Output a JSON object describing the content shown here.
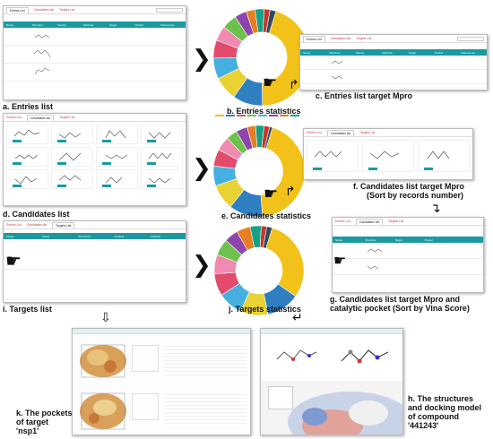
{
  "captions": {
    "a": "a. Entries list",
    "b": "b. Entries statistics",
    "c": "c. Entries list target Mpro",
    "d": "d. Candidates list",
    "e": "e. Candidates statistics",
    "f1": "f. Candidates list target Mpro",
    "f2": "(Sort by records number)",
    "g1": "g. Candidates list target Mpro and",
    "g2": "catalytic pocket (Sort by Vina Score)",
    "h1": "h. The structures",
    "h2": "and docking model",
    "h3": "of compound",
    "h4": "'441243'",
    "i": "i. Targets list",
    "j": "j. Targets statistics",
    "k1": "k. The pockets",
    "k2": "of target",
    "k3": "'nsp1'"
  },
  "tabs": {
    "entries": "Entries List",
    "candidates": "Candidates list",
    "targets": "Targets List"
  },
  "columns": [
    "Name",
    "Structure",
    "Source",
    "Methods",
    "Target",
    "Pocket",
    "References"
  ],
  "target_columns": [
    "Target",
    "Name",
    "Structures",
    "Pockets",
    "Analysis"
  ],
  "colors": {
    "teal": "#1a9aa0",
    "red_link": "#e33",
    "donut": [
      "#f2c21a",
      "#2f7fc1",
      "#e8d234",
      "#45b0e0",
      "#e24b6b",
      "#f08ab0",
      "#6cc24a",
      "#8e44ad",
      "#e67e22",
      "#16a085",
      "#c0392b",
      "#34495e"
    ]
  },
  "donut_slices_b": [
    45,
    10,
    8,
    7,
    6,
    5,
    5,
    4,
    3,
    3,
    2,
    2
  ],
  "donut_slices_e": [
    44,
    12,
    9,
    7,
    6,
    5,
    4,
    4,
    3,
    3,
    2,
    1
  ],
  "donut_slices_j": [
    30,
    12,
    10,
    9,
    8,
    7,
    6,
    5,
    5,
    4,
    2,
    2
  ],
  "icons": [
    "hand-pointer-icon",
    "share-arrow-icon",
    "chevron-right-icon",
    "down-arrow-icon"
  ]
}
